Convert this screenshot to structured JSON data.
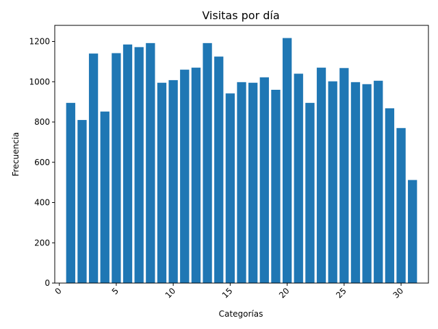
{
  "chart_data": {
    "type": "bar",
    "title": "Visitas por día",
    "xlabel": "Categorías",
    "ylabel": "Frecuencia",
    "x": [
      1,
      2,
      3,
      4,
      5,
      6,
      7,
      8,
      9,
      10,
      11,
      12,
      13,
      14,
      15,
      16,
      17,
      18,
      19,
      20,
      21,
      22,
      23,
      24,
      25,
      26,
      27,
      28,
      29,
      30,
      31
    ],
    "values": [
      895,
      810,
      1140,
      852,
      1142,
      1185,
      1172,
      1192,
      995,
      1008,
      1060,
      1070,
      1192,
      1125,
      942,
      998,
      995,
      1022,
      960,
      1217,
      1040,
      895,
      1070,
      1002,
      1068,
      998,
      988,
      1005,
      868,
      770,
      512
    ],
    "xlim": [
      -0.4,
      32.4
    ],
    "ylim": [
      0,
      1280
    ],
    "xticks": [
      0,
      5,
      10,
      15,
      20,
      25,
      30
    ],
    "xtick_labels": [
      "0",
      "5",
      "10",
      "15",
      "20",
      "25",
      "30"
    ],
    "yticks": [
      0,
      200,
      400,
      600,
      800,
      1000,
      1200
    ],
    "ytick_labels": [
      "0",
      "200",
      "400",
      "600",
      "800",
      "1000",
      "1200"
    ],
    "bar_color": "#1f77b4",
    "grid": false,
    "legend": false
  }
}
